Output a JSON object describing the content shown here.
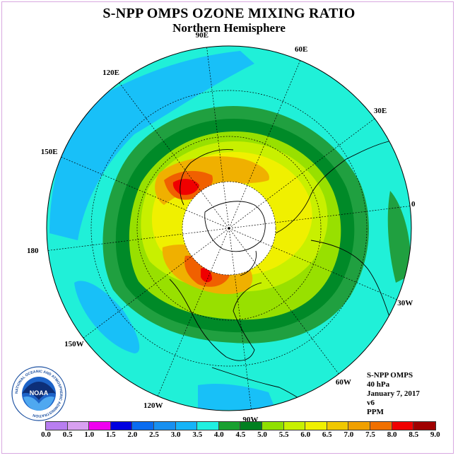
{
  "title": "S-NPP OMPS OZONE MIXING RATIO",
  "subtitle": "Northern Hemisphere",
  "longitude_labels": [
    "90E",
    "60E",
    "30E",
    "0",
    "30W",
    "60W",
    "90W",
    "120W",
    "150W",
    "180",
    "150E",
    "120E"
  ],
  "info": {
    "instrument": "S-NPP OMPS",
    "level": "40 hPa",
    "date": "January 7, 2017",
    "version": "v6",
    "units": "PPM"
  },
  "colorbar": {
    "ticks": [
      "0.0",
      "0.5",
      "1.0",
      "1.5",
      "2.0",
      "2.5",
      "3.0",
      "3.5",
      "4.0",
      "4.5",
      "5.0",
      "5.5",
      "6.0",
      "6.5",
      "7.0",
      "7.5",
      "8.0",
      "8.5",
      "9.0"
    ],
    "colors": [
      "#b87ef0",
      "#d8a0f0",
      "#f000f0",
      "#0000e0",
      "#0a6cf0",
      "#1890f0",
      "#16b4f8",
      "#20f0e0",
      "#18a030",
      "#008020",
      "#90e000",
      "#c8f000",
      "#f0f000",
      "#f0c800",
      "#f0a000",
      "#f07000",
      "#f00000",
      "#a00000"
    ]
  },
  "logo": {
    "text": "NOAA",
    "ring_text": "NATIONAL OCEANIC AND ATMOSPHERIC ADMINISTRATION"
  },
  "colors": {
    "background_region": "#20f0d8",
    "low_region": "#18c0f8",
    "ring_dark_green": "#008a28",
    "ring_green": "#20a040",
    "light_green": "#98e000",
    "yellow_green": "#c8f000",
    "yellow": "#f0f000",
    "orange": "#f0b000",
    "red": "#f00000",
    "polar_night": "#ffffff"
  }
}
